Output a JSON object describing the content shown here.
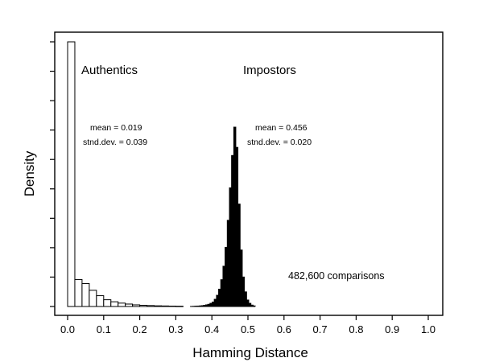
{
  "chart_data": {
    "type": "histogram",
    "xlabel": "Hamming Distance",
    "ylabel": "Density",
    "xlim": [
      0.0,
      1.0
    ],
    "x_ticks": [
      "0.0",
      "0.1",
      "0.2",
      "0.3",
      "0.4",
      "0.5",
      "0.6",
      "0.7",
      "0.8",
      "0.9",
      "1.0"
    ],
    "y_tick_labels_shown": false,
    "grid": false,
    "annotation": "482,600 comparisons",
    "series": [
      {
        "name": "Authentics",
        "style": "outline",
        "color": "#000000",
        "fill": "#ffffff",
        "stats": [
          "mean = 0.019",
          "stnd.dev. = 0.039"
        ],
        "bins": [
          {
            "x0": 0.0,
            "x1": 0.02,
            "density": 19.6
          },
          {
            "x0": 0.02,
            "x1": 0.04,
            "density": 2.0
          },
          {
            "x0": 0.04,
            "x1": 0.06,
            "density": 1.7
          },
          {
            "x0": 0.06,
            "x1": 0.08,
            "density": 1.2
          },
          {
            "x0": 0.08,
            "x1": 0.1,
            "density": 0.8
          },
          {
            "x0": 0.1,
            "x1": 0.12,
            "density": 0.5
          },
          {
            "x0": 0.12,
            "x1": 0.14,
            "density": 0.35
          },
          {
            "x0": 0.14,
            "x1": 0.16,
            "density": 0.25
          },
          {
            "x0": 0.16,
            "x1": 0.18,
            "density": 0.18
          },
          {
            "x0": 0.18,
            "x1": 0.2,
            "density": 0.12
          },
          {
            "x0": 0.2,
            "x1": 0.22,
            "density": 0.09
          },
          {
            "x0": 0.22,
            "x1": 0.24,
            "density": 0.07
          },
          {
            "x0": 0.24,
            "x1": 0.26,
            "density": 0.05
          },
          {
            "x0": 0.26,
            "x1": 0.28,
            "density": 0.04
          },
          {
            "x0": 0.28,
            "x1": 0.3,
            "density": 0.03
          },
          {
            "x0": 0.3,
            "x1": 0.32,
            "density": 0.02
          }
        ]
      },
      {
        "name": "Impostors",
        "style": "filled",
        "color": "#000000",
        "fill": "#000000",
        "stats": [
          "mean = 0.456",
          "stnd.dev. = 0.020"
        ],
        "bins": [
          {
            "x0": 0.34,
            "x1": 0.346,
            "density": 0.02
          },
          {
            "x0": 0.346,
            "x1": 0.352,
            "density": 0.03
          },
          {
            "x0": 0.352,
            "x1": 0.358,
            "density": 0.04
          },
          {
            "x0": 0.358,
            "x1": 0.364,
            "density": 0.05
          },
          {
            "x0": 0.364,
            "x1": 0.37,
            "density": 0.06
          },
          {
            "x0": 0.37,
            "x1": 0.376,
            "density": 0.08
          },
          {
            "x0": 0.376,
            "x1": 0.382,
            "density": 0.1
          },
          {
            "x0": 0.382,
            "x1": 0.388,
            "density": 0.14
          },
          {
            "x0": 0.388,
            "x1": 0.394,
            "density": 0.18
          },
          {
            "x0": 0.394,
            "x1": 0.4,
            "density": 0.25
          },
          {
            "x0": 0.4,
            "x1": 0.406,
            "density": 0.35
          },
          {
            "x0": 0.406,
            "x1": 0.412,
            "density": 0.55
          },
          {
            "x0": 0.412,
            "x1": 0.418,
            "density": 0.85
          },
          {
            "x0": 0.418,
            "x1": 0.424,
            "density": 1.3
          },
          {
            "x0": 0.424,
            "x1": 0.43,
            "density": 2.0
          },
          {
            "x0": 0.43,
            "x1": 0.436,
            "density": 3.0
          },
          {
            "x0": 0.436,
            "x1": 0.442,
            "density": 4.4
          },
          {
            "x0": 0.442,
            "x1": 0.448,
            "density": 6.4
          },
          {
            "x0": 0.448,
            "x1": 0.454,
            "density": 8.8
          },
          {
            "x0": 0.454,
            "x1": 0.46,
            "density": 11.2
          },
          {
            "x0": 0.46,
            "x1": 0.466,
            "density": 13.3
          },
          {
            "x0": 0.466,
            "x1": 0.472,
            "density": 11.8
          },
          {
            "x0": 0.472,
            "x1": 0.478,
            "density": 7.6
          },
          {
            "x0": 0.478,
            "x1": 0.484,
            "density": 4.2
          },
          {
            "x0": 0.484,
            "x1": 0.49,
            "density": 2.2
          },
          {
            "x0": 0.49,
            "x1": 0.496,
            "density": 1.1
          },
          {
            "x0": 0.496,
            "x1": 0.502,
            "density": 0.5
          },
          {
            "x0": 0.502,
            "x1": 0.508,
            "density": 0.25
          },
          {
            "x0": 0.508,
            "x1": 0.514,
            "density": 0.12
          },
          {
            "x0": 0.514,
            "x1": 0.52,
            "density": 0.06
          }
        ]
      }
    ]
  }
}
